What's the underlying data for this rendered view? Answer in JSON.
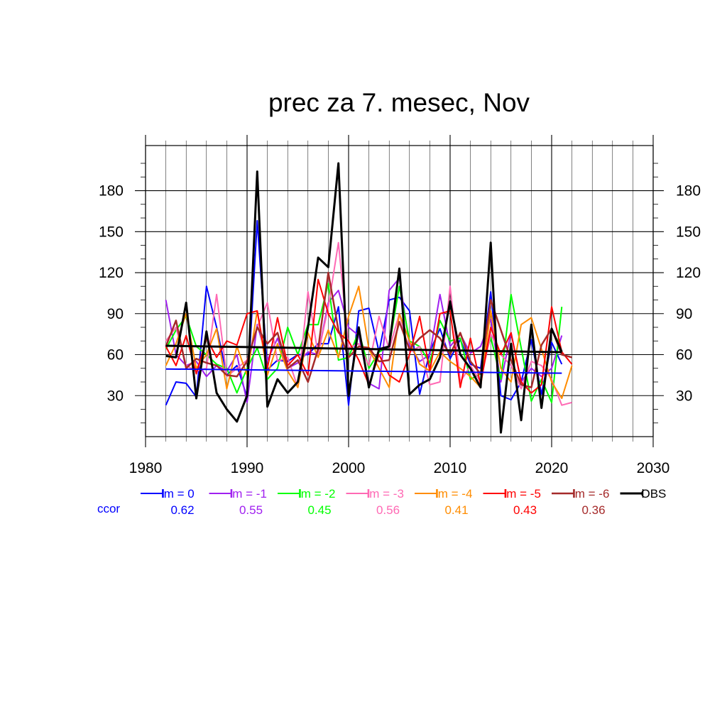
{
  "chart_data": {
    "type": "line",
    "title": "prec za 7. mesec, Nov",
    "xlabel": "",
    "ylabel": "",
    "xlim": [
      1980,
      2030
    ],
    "ylim": [
      0,
      213
    ],
    "x_ticks": [
      1980,
      1990,
      2000,
      2010,
      2020,
      2030
    ],
    "y_ticks": [
      30,
      60,
      90,
      120,
      150,
      180
    ],
    "grid": true,
    "legend_position": "bottom",
    "ccor_label": "ccor",
    "ccor_color": "#0000ff",
    "series": [
      {
        "name": "lm = 0",
        "color": "#0000ff",
        "width": 2,
        "ccor": "0.62",
        "x": [
          1982,
          1983,
          1984,
          1985,
          1986,
          1987,
          1988,
          1989,
          1990,
          1991,
          1992,
          1993,
          1994,
          1995,
          1996,
          1997,
          1998,
          1999,
          2000,
          2001,
          2002,
          2003,
          2004,
          2005,
          2006,
          2007,
          2008,
          2009,
          2010,
          2011,
          2012,
          2013,
          2014,
          2015,
          2016,
          2017,
          2018,
          2019,
          2020,
          2021
        ],
        "values": [
          23,
          40,
          39,
          29,
          110,
          80,
          45,
          52,
          29,
          158,
          49,
          56,
          55,
          60,
          60,
          68,
          68,
          95,
          23,
          92,
          94,
          62,
          100,
          102,
          92,
          31,
          62,
          79,
          57,
          71,
          53,
          50,
          106,
          30,
          27,
          40,
          71,
          31,
          69,
          53
        ],
        "trend": [
          49.5,
          46.4
        ]
      },
      {
        "name": "lm = -1",
        "color": "#a020f0",
        "width": 2,
        "ccor": "0.55",
        "x": [
          1982,
          1983,
          1984,
          1985,
          1986,
          1987,
          1988,
          1989,
          1990,
          1991,
          1992,
          1993,
          1994,
          1995,
          1996,
          1997,
          1998,
          1999,
          2000,
          2001,
          2002,
          2003,
          2004,
          2005,
          2006,
          2007,
          2008,
          2009,
          2010,
          2011,
          2012,
          2013,
          2014,
          2015,
          2016,
          2017,
          2018,
          2019,
          2020,
          2021
        ],
        "values": [
          100,
          60,
          52,
          55,
          44,
          52,
          48,
          60,
          25,
          82,
          56,
          72,
          50,
          54,
          62,
          60,
          98,
          107,
          80,
          74,
          39,
          35,
          107,
          116,
          67,
          55,
          60,
          104,
          66,
          75,
          61,
          66,
          86,
          40,
          76,
          40,
          50,
          44,
          50,
          74
        ]
      },
      {
        "name": "lm = -2",
        "color": "#00ff00",
        "width": 2,
        "ccor": "0.45",
        "x": [
          1982,
          1983,
          1984,
          1985,
          1986,
          1987,
          1988,
          1989,
          1990,
          1991,
          1992,
          1993,
          1994,
          1995,
          1996,
          1997,
          1998,
          1999,
          2000,
          2001,
          2002,
          2003,
          2004,
          2005,
          2006,
          2007,
          2008,
          2009,
          2010,
          2011,
          2012,
          2013,
          2014,
          2015,
          2016,
          2017,
          2018,
          2019,
          2020,
          2021
        ],
        "values": [
          64,
          78,
          88,
          66,
          60,
          53,
          50,
          32,
          50,
          65,
          42,
          50,
          80,
          60,
          82,
          82,
          112,
          56,
          58,
          77,
          50,
          62,
          66,
          110,
          70,
          66,
          54,
          85,
          70,
          72,
          42,
          46,
          73,
          42,
          104,
          65,
          26,
          42,
          25,
          95
        ]
      },
      {
        "name": "lm = -3",
        "color": "#ff69b4",
        "width": 2,
        "ccor": "0.56",
        "x": [
          1982,
          1983,
          1984,
          1985,
          1986,
          1987,
          1988,
          1989,
          1990,
          1991,
          1992,
          1993,
          1994,
          1995,
          1996,
          1997,
          1998,
          1999,
          2000,
          2001,
          2002,
          2003,
          2004,
          2005,
          2006,
          2007,
          2008,
          2009,
          2010,
          2011,
          2012,
          2013,
          2014,
          2015,
          2016,
          2017,
          2018,
          2019,
          2020,
          2021,
          2022
        ],
        "values": [
          70,
          80,
          52,
          48,
          50,
          104,
          44,
          50,
          56,
          80,
          98,
          55,
          58,
          36,
          106,
          60,
          95,
          142,
          65,
          68,
          52,
          88,
          64,
          90,
          62,
          66,
          38,
          40,
          110,
          40,
          52,
          40,
          75,
          60,
          52,
          35,
          55,
          52,
          42,
          23,
          25
        ]
      },
      {
        "name": "lm = -4",
        "color": "#ff8c00",
        "width": 2,
        "ccor": "0.41",
        "x": [
          1982,
          1983,
          1984,
          1985,
          1986,
          1987,
          1988,
          1989,
          1990,
          1991,
          1992,
          1993,
          1994,
          1995,
          1996,
          1997,
          1998,
          1999,
          2000,
          2001,
          2002,
          2003,
          2004,
          2005,
          2006,
          2007,
          2008,
          2009,
          2010,
          2011,
          2012,
          2013,
          2014,
          2015,
          2016,
          2017,
          2018,
          2019,
          2020,
          2021,
          2022
        ],
        "values": [
          52,
          68,
          90,
          50,
          60,
          79,
          35,
          66,
          45,
          92,
          45,
          68,
          48,
          36,
          76,
          58,
          78,
          58,
          88,
          110,
          64,
          50,
          36,
          90,
          70,
          53,
          48,
          62,
          55,
          50,
          44,
          36,
          92,
          50,
          40,
          82,
          87,
          64,
          40,
          28,
          52
        ]
      },
      {
        "name": "lm = -5",
        "color": "#ff0000",
        "width": 2,
        "ccor": "0.43",
        "x": [
          1982,
          1983,
          1984,
          1985,
          1986,
          1987,
          1988,
          1989,
          1990,
          1991,
          1992,
          1993,
          1994,
          1995,
          1996,
          1997,
          1998,
          1999,
          2000,
          2001,
          2002,
          2003,
          2004,
          2005,
          2006,
          2007,
          2008,
          2009,
          2010,
          2011,
          2012,
          2013,
          2014,
          2015,
          2016,
          2017,
          2018,
          2019,
          2020,
          2021,
          2022
        ],
        "values": [
          66,
          52,
          74,
          46,
          72,
          58,
          70,
          67,
          90,
          92,
          50,
          87,
          52,
          60,
          45,
          115,
          90,
          76,
          70,
          56,
          38,
          60,
          45,
          40,
          60,
          88,
          48,
          90,
          92,
          36,
          72,
          38,
          80,
          60,
          76,
          40,
          32,
          38,
          95,
          62,
          53
        ]
      },
      {
        "name": "lm = -6",
        "color": "#a52a2a",
        "width": 2.5,
        "ccor": "0.36",
        "x": [
          1982,
          1983,
          1984,
          1985,
          1986,
          1987,
          1988,
          1989,
          1990,
          1991,
          1992,
          1993,
          1994,
          1995,
          1996,
          1997,
          1998,
          1999,
          2000,
          2001,
          2002,
          2003,
          2004,
          2005,
          2006,
          2007,
          2008,
          2009,
          2010,
          2011,
          2012,
          2013,
          2014,
          2015,
          2016,
          2017,
          2018,
          2019,
          2020,
          2021,
          2022
        ],
        "values": [
          66,
          85,
          50,
          57,
          54,
          52,
          45,
          44,
          55,
          80,
          68,
          76,
          50,
          56,
          40,
          64,
          120,
          78,
          58,
          66,
          65,
          55,
          56,
          84,
          64,
          72,
          78,
          72,
          60,
          76,
          55,
          46,
          100,
          78,
          56,
          38,
          36,
          67,
          79,
          60,
          58
        ]
      },
      {
        "name": "OBS",
        "color": "#000000",
        "width": 3,
        "ccor": "",
        "x": [
          1982,
          1983,
          1984,
          1985,
          1986,
          1987,
          1988,
          1989,
          1990,
          1991,
          1992,
          1993,
          1994,
          1995,
          1996,
          1997,
          1998,
          1999,
          2000,
          2001,
          2002,
          2003,
          2004,
          2005,
          2006,
          2007,
          2008,
          2009,
          2010,
          2011,
          2012,
          2013,
          2014,
          2015,
          2016,
          2017,
          2018,
          2019,
          2020,
          2021
        ],
        "values": [
          59,
          58,
          98,
          28,
          77,
          32,
          20,
          11,
          30,
          194,
          22,
          42,
          32,
          40,
          80,
          131,
          124,
          200,
          30,
          80,
          36,
          64,
          66,
          123,
          31,
          38,
          42,
          58,
          99,
          60,
          50,
          36,
          142,
          3,
          68,
          12,
          82,
          21,
          79,
          62
        ],
        "trend": [
          66.5,
          61.8
        ]
      }
    ]
  }
}
